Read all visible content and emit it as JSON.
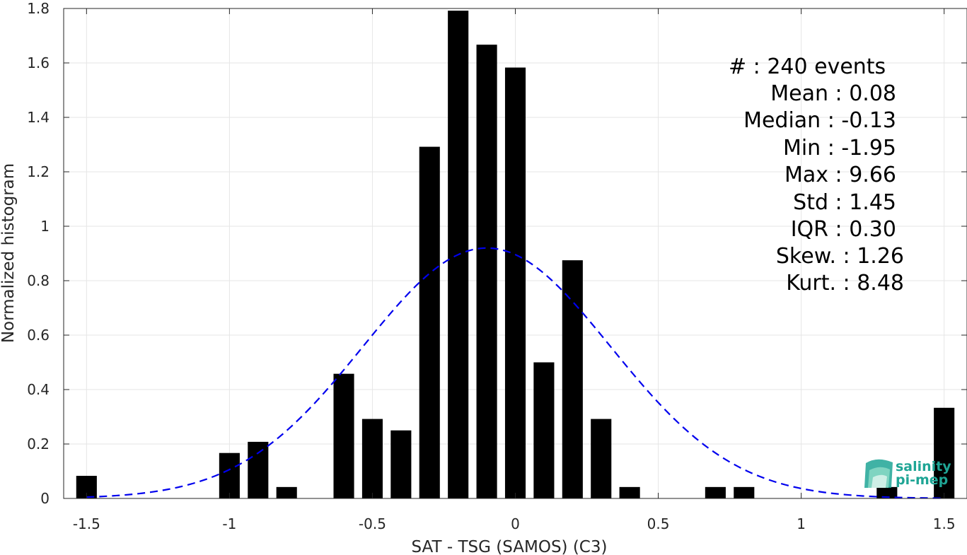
{
  "chart_data": {
    "type": "bar",
    "xlabel": "SAT - TSG (SAMOS) (C3)",
    "ylabel": "Normalized histogram",
    "xlim": [
      -1.58,
      1.58
    ],
    "ylim": [
      0,
      1.8
    ],
    "x_ticks": [
      -1.5,
      -1,
      -0.5,
      0,
      0.5,
      1,
      1.5
    ],
    "x_tick_labels": [
      "-1.5",
      "-1",
      "-0.5",
      "0",
      "0.5",
      "1",
      "1.5"
    ],
    "y_ticks": [
      0,
      0.2,
      0.4,
      0.6,
      0.8,
      1,
      1.2,
      1.4,
      1.6,
      1.8
    ],
    "y_tick_labels": [
      "0",
      "0.2",
      "0.4",
      "0.6",
      "0.8",
      "1",
      "1.2",
      "1.4",
      "1.6",
      "1.8"
    ],
    "grid": true,
    "bin_width": 0.1,
    "bars": [
      {
        "x": -1.5,
        "y": 0.083
      },
      {
        "x": -1.0,
        "y": 0.167
      },
      {
        "x": -0.9,
        "y": 0.208
      },
      {
        "x": -0.8,
        "y": 0.042
      },
      {
        "x": -0.6,
        "y": 0.458
      },
      {
        "x": -0.5,
        "y": 0.292
      },
      {
        "x": -0.4,
        "y": 0.25
      },
      {
        "x": -0.3,
        "y": 1.292
      },
      {
        "x": -0.2,
        "y": 1.792
      },
      {
        "x": -0.1,
        "y": 1.667
      },
      {
        "x": 0.0,
        "y": 1.583
      },
      {
        "x": 0.1,
        "y": 0.5
      },
      {
        "x": 0.2,
        "y": 0.875
      },
      {
        "x": 0.3,
        "y": 0.292
      },
      {
        "x": 0.4,
        "y": 0.042
      },
      {
        "x": 0.7,
        "y": 0.042
      },
      {
        "x": 0.8,
        "y": 0.042
      },
      {
        "x": 1.3,
        "y": 0.042
      },
      {
        "x": 1.5,
        "y": 0.333
      }
    ],
    "fit_curve": {
      "style": "dashed",
      "color": "#0000ee",
      "peak_x": -0.1,
      "peak_y": 0.92,
      "sigma": 0.433,
      "x_range": [
        -1.5,
        1.5
      ]
    },
    "bar_color": "#000000"
  },
  "stats": [
    {
      "label": "#  : 240 events"
    },
    {
      "label": "Mean : 0.08"
    },
    {
      "label": "Median : -0.13"
    },
    {
      "label": "Min : -1.95"
    },
    {
      "label": "Max : 9.66"
    },
    {
      "label": "Std : 1.45"
    },
    {
      "label": "IQR : 0.30"
    },
    {
      "label": "Skew. : 1.26"
    },
    {
      "label": "Kurt. : 8.48"
    }
  ],
  "logo": {
    "line1": "salinity",
    "line2": "pi-mep",
    "color": "#1fa595"
  }
}
